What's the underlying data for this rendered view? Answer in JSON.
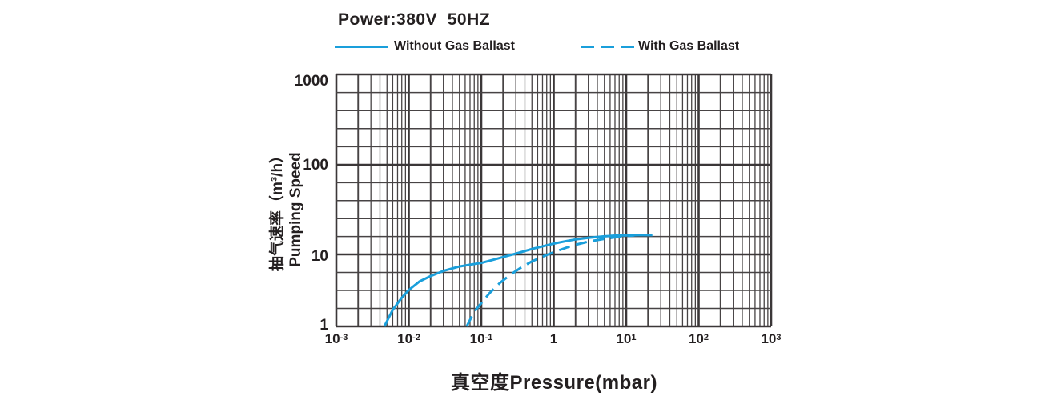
{
  "title": "Power:380V  50HZ",
  "legend": [
    {
      "label": "Without Gas Ballast",
      "style": "solid"
    },
    {
      "label": "With Gas Ballast",
      "style": "dashed"
    }
  ],
  "colors": {
    "curve": "#1a9fdb",
    "grid_major": "#3b3738",
    "grid_minor": "#474344",
    "text": "#231f20"
  },
  "chart_data": {
    "type": "line",
    "title": "Power:380V  50HZ",
    "xlabel": "真空度Pressure(mbar)",
    "ylabel_cn": "抽气速率（m³/h）",
    "ylabel_en": "Pumping Speed",
    "x_scale": "log",
    "y_scale": "log",
    "xlim": [
      0.001,
      1000
    ],
    "ylim": [
      1,
      1000
    ],
    "grid": "log-log, decade lines bold, x minors at 2-9 per decade",
    "legend_position": "top",
    "x_ticks": [
      {
        "base": "10",
        "exp": "-3"
      },
      {
        "base": "10",
        "exp": "-2"
      },
      {
        "base": "10",
        "exp": "-1"
      },
      {
        "base": "1",
        "exp": ""
      },
      {
        "base": "10",
        "exp": "1"
      },
      {
        "base": "10",
        "exp": "2"
      },
      {
        "base": "10",
        "exp": "3"
      }
    ],
    "y_ticks": [
      "1000",
      "100",
      "10",
      "1"
    ],
    "series": [
      {
        "name": "Without Gas Ballast",
        "dash": false,
        "points": [
          [
            0.0046,
            1.0
          ],
          [
            0.006,
            1.7
          ],
          [
            0.008,
            2.5
          ],
          [
            0.01,
            3.2
          ],
          [
            0.014,
            4.2
          ],
          [
            0.02,
            5.0
          ],
          [
            0.03,
            5.9
          ],
          [
            0.05,
            6.8
          ],
          [
            0.07,
            7.2
          ],
          [
            0.1,
            7.6
          ],
          [
            0.15,
            8.5
          ],
          [
            0.2,
            9.2
          ],
          [
            0.3,
            10.2
          ],
          [
            0.5,
            11.5
          ],
          [
            0.7,
            12.3
          ],
          [
            1.0,
            13.2
          ],
          [
            1.5,
            14.1
          ],
          [
            2.0,
            14.7
          ],
          [
            3.0,
            15.3
          ],
          [
            5.0,
            15.9
          ],
          [
            7.0,
            16.2
          ],
          [
            10.0,
            16.3
          ],
          [
            15.0,
            16.4
          ],
          [
            23.0,
            16.4
          ]
        ]
      },
      {
        "name": "With Gas Ballast",
        "dash": true,
        "points": [
          [
            0.063,
            1.0
          ],
          [
            0.08,
            1.6
          ],
          [
            0.1,
            2.1
          ],
          [
            0.13,
            2.9
          ],
          [
            0.18,
            4.0
          ],
          [
            0.25,
            5.2
          ],
          [
            0.35,
            6.5
          ],
          [
            0.5,
            8.0
          ],
          [
            0.7,
            9.3
          ],
          [
            1.0,
            10.6
          ],
          [
            1.5,
            11.9
          ],
          [
            2.0,
            12.8
          ],
          [
            3.0,
            13.9
          ],
          [
            5.0,
            14.9
          ],
          [
            7.0,
            15.5
          ],
          [
            10.0,
            16.0
          ],
          [
            13.0,
            16.3
          ]
        ]
      }
    ]
  }
}
